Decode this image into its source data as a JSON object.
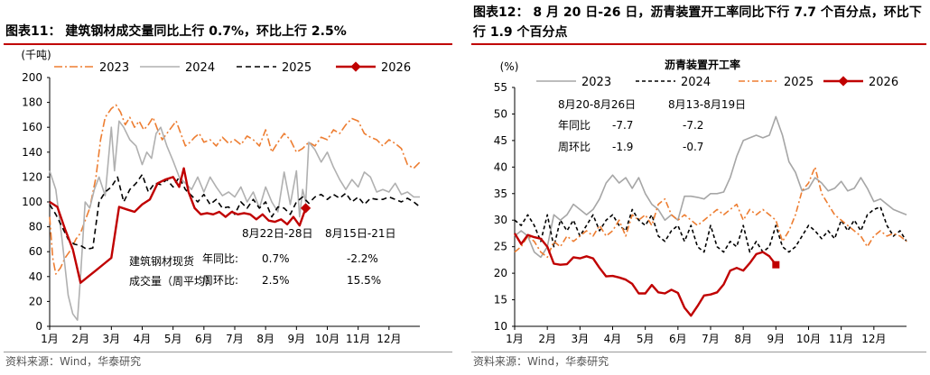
{
  "left": {
    "title": "图表11： 建筑钢材成交量同比上行 0.7%，环比上行 2.5%",
    "source": "资料来源：Wind，华泰研究",
    "chart_data": {
      "type": "line",
      "ylabel": "(千吨)",
      "ylim": [
        0,
        200
      ],
      "yticks": [
        "0",
        "20",
        "40",
        "60",
        "80",
        "100",
        "120",
        "140",
        "160",
        "180",
        "200"
      ],
      "xlim": [
        1,
        13
      ],
      "xticks": [
        "1月",
        "2月",
        "3月",
        "4月",
        "5月",
        "6月",
        "7月",
        "8月",
        "9月",
        "10月",
        "11月",
        "12月"
      ],
      "series": [
        {
          "name": "2023",
          "color": "#ed7d31",
          "dash": "9,3,2,3",
          "x": [
            1,
            1.1,
            1.2,
            1.35,
            1.5,
            1.7,
            1.85,
            2,
            2.15,
            2.3,
            2.5,
            2.65,
            2.8,
            3,
            3.15,
            3.3,
            3.45,
            3.6,
            3.75,
            3.9,
            4.05,
            4.2,
            4.35,
            4.5,
            4.65,
            4.8,
            4.95,
            5.1,
            5.25,
            5.4,
            5.55,
            5.7,
            5.85,
            6,
            6.2,
            6.4,
            6.6,
            6.8,
            7,
            7.2,
            7.4,
            7.6,
            7.8,
            8,
            8.2,
            8.4,
            8.6,
            8.8,
            9,
            9.2,
            9.4,
            9.6,
            9.8,
            10,
            10.2,
            10.4,
            10.6,
            10.8,
            11,
            11.2,
            11.4,
            11.6,
            11.8,
            12,
            12.2,
            12.4,
            12.6,
            12.8,
            13
          ],
          "y": [
            88,
            55,
            42,
            47,
            55,
            62,
            70,
            75,
            85,
            95,
            120,
            150,
            168,
            175,
            178,
            172,
            162,
            168,
            160,
            165,
            158,
            162,
            168,
            158,
            150,
            155,
            160,
            165,
            155,
            145,
            148,
            152,
            155,
            148,
            150,
            145,
            152,
            147,
            150,
            146,
            153,
            150,
            145,
            158,
            140,
            148,
            155,
            150,
            140,
            143,
            148,
            145,
            152,
            150,
            158,
            155,
            162,
            167,
            165,
            155,
            152,
            150,
            145,
            150,
            147,
            143,
            130,
            127,
            132
          ]
        },
        {
          "name": "2024",
          "color": "#b0b0b0",
          "dash": "",
          "x": [
            1,
            1.2,
            1.4,
            1.6,
            1.75,
            1.9,
            2,
            2.15,
            2.3,
            2.45,
            2.6,
            2.8,
            3,
            3.1,
            3.25,
            3.4,
            3.6,
            3.8,
            4,
            4.15,
            4.3,
            4.45,
            4.6,
            4.8,
            5,
            5.2,
            5.4,
            5.6,
            5.8,
            6,
            6.2,
            6.4,
            6.6,
            6.8,
            7,
            7.2,
            7.4,
            7.6,
            7.8,
            8,
            8.2,
            8.4,
            8.6,
            8.8,
            9,
            9.1,
            9.2,
            9.3,
            9.4,
            9.6,
            9.8,
            10,
            10.2,
            10.4,
            10.6,
            10.8,
            11,
            11.2,
            11.4,
            11.6,
            11.8,
            12,
            12.2,
            12.4,
            12.6,
            12.8,
            13
          ],
          "y": [
            125,
            110,
            70,
            25,
            10,
            5,
            40,
            100,
            95,
            110,
            120,
            105,
            160,
            125,
            165,
            160,
            150,
            145,
            130,
            140,
            135,
            155,
            160,
            145,
            133,
            120,
            115,
            110,
            120,
            108,
            120,
            112,
            105,
            108,
            104,
            112,
            100,
            108,
            95,
            112,
            100,
            92,
            124,
            98,
            125,
            88,
            110,
            100,
            148,
            142,
            132,
            140,
            128,
            118,
            110,
            118,
            112,
            124,
            120,
            108,
            110,
            108,
            115,
            106,
            108,
            104,
            104
          ]
        },
        {
          "name": "2025",
          "color": "#000000",
          "dash": "6,4",
          "x": [
            1,
            1.2,
            1.4,
            1.6,
            1.8,
            2,
            2.2,
            2.4,
            2.6,
            2.8,
            3,
            3.2,
            3.4,
            3.6,
            3.8,
            4,
            4.2,
            4.4,
            4.6,
            4.8,
            5,
            5.2,
            5.4,
            5.6,
            5.8,
            6,
            6.2,
            6.4,
            6.6,
            6.8,
            7,
            7.2,
            7.4,
            7.6,
            7.8,
            8,
            8.2,
            8.4,
            8.6,
            8.8,
            9,
            9.2,
            9.4,
            9.6,
            9.8,
            10,
            10.2,
            10.4,
            10.6,
            10.8,
            11,
            11.2,
            11.4,
            11.6,
            11.8,
            12,
            12.2,
            12.4,
            12.6,
            12.8,
            13
          ],
          "y": [
            98,
            90,
            80,
            70,
            66,
            65,
            62,
            63,
            100,
            108,
            112,
            120,
            100,
            110,
            115,
            122,
            108,
            115,
            114,
            118,
            112,
            120,
            110,
            105,
            100,
            106,
            98,
            102,
            95,
            96,
            90,
            100,
            95,
            102,
            95,
            100,
            88,
            96,
            95,
            90,
            100,
            104,
            99,
            104,
            106,
            102,
            106,
            103,
            107,
            100,
            104,
            98,
            103,
            102,
            102,
            104,
            102,
            100,
            103,
            100,
            96
          ]
        },
        {
          "name": "2026",
          "color": "#c00000",
          "dash": "",
          "x": [
            1,
            1.25,
            1.5,
            1.75,
            2,
            2.25,
            2.5,
            2.75,
            3,
            3.25,
            3.5,
            3.75,
            4,
            4.25,
            4.5,
            4.75,
            5,
            5.2,
            5.35,
            5.5,
            5.7,
            5.9,
            6.1,
            6.3,
            6.5,
            6.7,
            6.9,
            7.1,
            7.3,
            7.5,
            7.7,
            7.9,
            8.1,
            8.3,
            8.5,
            8.7,
            8.9,
            9.1,
            9.3
          ],
          "y": [
            100,
            96,
            78,
            62,
            35,
            40,
            45,
            50,
            55,
            96,
            94,
            92,
            98,
            102,
            115,
            118,
            120,
            112,
            127,
            108,
            95,
            90,
            91,
            90,
            92,
            88,
            92,
            90,
            91,
            90,
            86,
            90,
            85,
            84,
            86,
            82,
            88,
            81,
            95
          ],
          "end_marker": true
        }
      ],
      "legend": {
        "position": "top",
        "entries": [
          "2023",
          "2024",
          "2025",
          "2026"
        ]
      },
      "annotations": {
        "box_title": "建筑钢材现货\n成交量（周平均）",
        "col1_header": "8月22日-28日",
        "col2_header": "8月15日-21日",
        "rows": [
          {
            "label": "年同比:",
            "v1": "0.7%",
            "v2": "-2.2%"
          },
          {
            "label": "周环比:",
            "v1": "2.5%",
            "v2": "15.5%"
          }
        ]
      }
    }
  },
  "right": {
    "title": "图表12： 8 月 20 日-26 日，沥青装置开工率同比下行 7.7 个百分点，环比下行 1.9 个百分点",
    "source": "资料来源：Wind，华泰研究",
    "chart_data": {
      "type": "line",
      "ylabel": "(%)",
      "subtitle": "沥青装置开工率",
      "ylim": [
        10,
        55
      ],
      "yticks": [
        "10",
        "15",
        "20",
        "25",
        "30",
        "35",
        "40",
        "45",
        "50",
        "55"
      ],
      "xlim": [
        1,
        13
      ],
      "xticks": [
        "1月",
        "2月",
        "3月",
        "4月",
        "5月",
        "6月",
        "7月",
        "8月",
        "9月",
        "10月",
        "11月",
        "12月"
      ],
      "series": [
        {
          "name": "2023",
          "color": "#a6a6a6",
          "dash": "",
          "x": [
            1,
            1.2,
            1.4,
            1.6,
            1.8,
            2,
            2.2,
            2.4,
            2.6,
            2.8,
            3,
            3.2,
            3.4,
            3.6,
            3.8,
            4,
            4.2,
            4.4,
            4.6,
            4.8,
            5,
            5.2,
            5.4,
            5.6,
            5.8,
            6,
            6.2,
            6.4,
            6.6,
            6.8,
            7,
            7.2,
            7.4,
            7.6,
            7.8,
            8,
            8.2,
            8.4,
            8.6,
            8.8,
            9,
            9.2,
            9.4,
            9.6,
            9.8,
            10,
            10.2,
            10.4,
            10.6,
            10.8,
            11,
            11.2,
            11.4,
            11.6,
            11.8,
            12,
            12.2,
            12.4,
            12.6,
            12.8,
            13
          ],
          "y": [
            27,
            28,
            27,
            24,
            23,
            25,
            31,
            30,
            31,
            33,
            32,
            31,
            32,
            34,
            37,
            38.5,
            37,
            38,
            36,
            38,
            35,
            33,
            32,
            30,
            31,
            30,
            34.5,
            34.5,
            34.3,
            34,
            35,
            35,
            35.3,
            38,
            42,
            45,
            45.5,
            46,
            45.5,
            46,
            49.5,
            46,
            41,
            39,
            35.5,
            36,
            38,
            37,
            35.5,
            36,
            37.3,
            35.5,
            36,
            38,
            36,
            33.5,
            34,
            33,
            32,
            31.5,
            31
          ]
        },
        {
          "name": "2024",
          "color": "#000000",
          "dash": "4,3",
          "x": [
            1,
            1.2,
            1.4,
            1.6,
            1.8,
            2,
            2.2,
            2.4,
            2.6,
            2.8,
            3,
            3.2,
            3.4,
            3.6,
            3.8,
            4,
            4.2,
            4.4,
            4.6,
            4.8,
            5,
            5.2,
            5.4,
            5.6,
            5.8,
            6,
            6.2,
            6.4,
            6.6,
            6.8,
            7,
            7.2,
            7.4,
            7.6,
            7.8,
            8,
            8.2,
            8.4,
            8.6,
            8.8,
            9,
            9.2,
            9.4,
            9.6,
            9.8,
            10,
            10.2,
            10.4,
            10.6,
            10.8,
            11,
            11.2,
            11.4,
            11.6,
            11.8,
            12,
            12.2,
            12.4,
            12.6,
            12.8,
            13
          ],
          "y": [
            30,
            29,
            31,
            29,
            26,
            31,
            25,
            30,
            28,
            30,
            27,
            29,
            31,
            28,
            30,
            31,
            29,
            28,
            32,
            30,
            29,
            31,
            27,
            26,
            28,
            29,
            26,
            29,
            25,
            24,
            29,
            25,
            24,
            26,
            25,
            29,
            24,
            26,
            24,
            25,
            29,
            25,
            24,
            25,
            27,
            29,
            28,
            26.5,
            28,
            26.5,
            30,
            28,
            30,
            28,
            31,
            32,
            32.5,
            29,
            27,
            28,
            26
          ]
        },
        {
          "name": "2025",
          "color": "#ed7d31",
          "dash": "7,3,2,3",
          "x": [
            1,
            1.2,
            1.4,
            1.6,
            1.8,
            2,
            2.2,
            2.4,
            2.6,
            2.8,
            3,
            3.2,
            3.4,
            3.6,
            3.8,
            4,
            4.2,
            4.4,
            4.6,
            4.8,
            5,
            5.2,
            5.4,
            5.6,
            5.8,
            6,
            6.2,
            6.4,
            6.6,
            6.8,
            7,
            7.2,
            7.4,
            7.6,
            7.8,
            8,
            8.2,
            8.4,
            8.6,
            8.8,
            9,
            9.2,
            9.4,
            9.6,
            9.8,
            10,
            10.2,
            10.4,
            10.6,
            10.8,
            11,
            11.2,
            11.4,
            11.6,
            11.8,
            12,
            12.2,
            12.4,
            12.6,
            12.8,
            13
          ],
          "y": [
            24,
            25,
            27,
            26,
            24,
            23,
            26,
            25,
            27,
            26,
            27,
            28,
            27,
            29,
            27,
            28,
            30,
            27,
            31,
            30,
            31,
            29,
            33,
            34,
            31,
            30,
            31,
            30,
            29,
            30,
            31,
            32,
            31,
            32,
            33,
            30,
            32,
            31,
            32,
            31,
            30,
            26,
            28,
            31,
            35.5,
            37,
            40,
            35,
            33,
            31,
            30,
            29,
            28,
            27,
            25,
            27,
            28,
            27,
            27.5,
            27,
            26
          ]
        },
        {
          "name": "2026",
          "color": "#c00000",
          "dash": "",
          "x": [
            1,
            1.2,
            1.4,
            1.6,
            1.8,
            2,
            2.2,
            2.4,
            2.6,
            2.8,
            3,
            3.2,
            3.4,
            3.6,
            3.8,
            4,
            4.2,
            4.4,
            4.6,
            4.8,
            5,
            5.2,
            5.4,
            5.6,
            5.8,
            6,
            6.2,
            6.4,
            6.6,
            6.8,
            7,
            7.2,
            7.4,
            7.6,
            7.8,
            8,
            8.2,
            8.4,
            8.6,
            8.8,
            9
          ],
          "y": [
            27.5,
            25.5,
            27.2,
            26.8,
            26.5,
            25,
            21.8,
            21.6,
            21.7,
            23,
            22.8,
            23.2,
            22.8,
            21,
            19.4,
            19.5,
            19.2,
            18.8,
            18,
            16.2,
            16.2,
            17.8,
            16.4,
            16.2,
            16.9,
            16.3,
            13.5,
            12,
            13.8,
            15.8,
            16,
            16.4,
            17.9,
            20.5,
            21,
            20.5,
            21.9,
            23.6,
            24,
            23.2,
            21.6
          ],
          "end_marker": true
        }
      ],
      "legend": {
        "position": "top",
        "entries": [
          "2023",
          "2024",
          "2025",
          "2026"
        ]
      },
      "annotations": {
        "col1_header": "8月20-8月26日",
        "col2_header": "8月13-8月19日",
        "rows": [
          {
            "label": "年同比",
            "v1": "-7.7",
            "v2": "-7.2"
          },
          {
            "label": "周环比",
            "v1": "-1.9",
            "v2": "-0.7"
          }
        ]
      }
    }
  }
}
